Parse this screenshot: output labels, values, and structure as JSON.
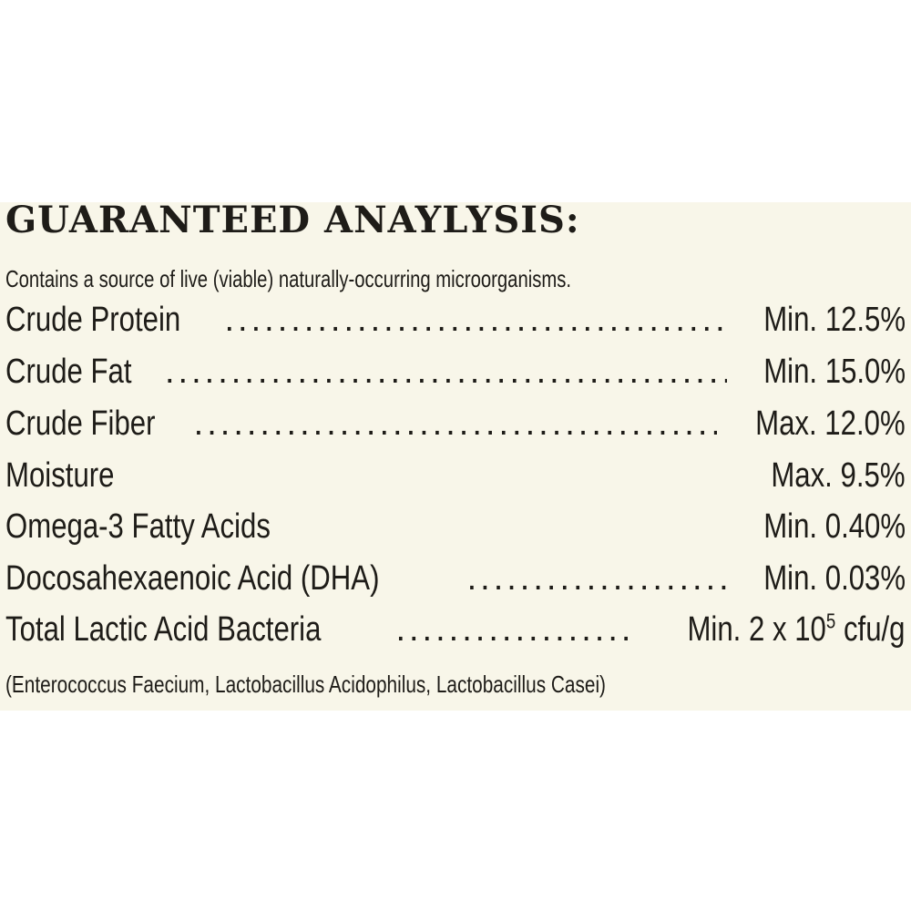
{
  "panel": {
    "title": "GUARANTEED ANAYLYSIS:",
    "subtitle": "Contains a source of live (viable) naturally-occurring microorganisms.",
    "rows": [
      {
        "name": "Crude Protein",
        "value": "Min. 12.5%"
      },
      {
        "name": "Crude Fat",
        "value": "Min. 15.0%"
      },
      {
        "name": "Crude Fiber",
        "value": "Max. 12.0%"
      },
      {
        "name": "Moisture",
        "value": "Max. 9.5%"
      },
      {
        "name": "Omega-3 Fatty Acids",
        "value": "Min. 0.40%"
      },
      {
        "name": "Docosahexaenoic Acid (DHA)",
        "value": "Min. 0.03%"
      },
      {
        "name": "Total Lactic Acid Bacteria",
        "value_prefix": "Min. 2 x 10",
        "value_exp": "5",
        "value_suffix": " cfu/g"
      }
    ],
    "footnote": "(Enterococcus Faecium, Lactobacillus Acidophilus, Lactobacillus Casei)"
  },
  "colors": {
    "panel_bg": "#f8f6e9",
    "text": "#1e1c18",
    "page_bg": "#ffffff"
  }
}
